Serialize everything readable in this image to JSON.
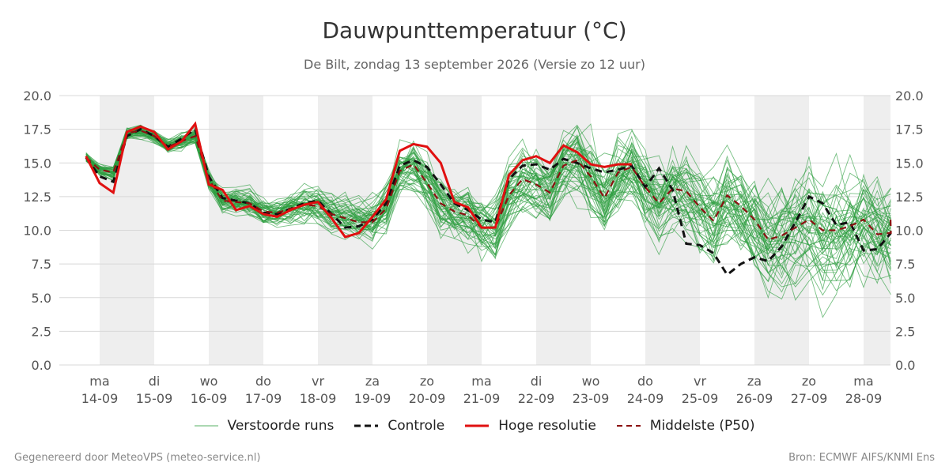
{
  "header": {
    "title": "Dauwpunttemperatuur (°C)",
    "subtitle": "De Bilt, zondag 13 september 2026 (Versie zo 12 uur)"
  },
  "footer": {
    "left": "Gegenereerd door MeteoVPS (meteo-service.nl)",
    "right": "Bron: ECMWF AIFS/KNMI Ens"
  },
  "legend": [
    {
      "key": "members",
      "label": "Verstoorde runs"
    },
    {
      "key": "control",
      "label": "Controle"
    },
    {
      "key": "hires",
      "label": "Hoge resolutie"
    },
    {
      "key": "median",
      "label": "Middelste (P50)"
    }
  ],
  "colors": {
    "members": "#2e9e41",
    "control": "#111111",
    "hires": "#e01010",
    "median": "#8b1010",
    "shade": "#eeeeee",
    "grid": "#d8d8d8"
  },
  "chart_data": {
    "type": "line",
    "x_unit": "days since ma 14-09 00:00",
    "xlim": [
      -0.25,
      14.5
    ],
    "ylim": [
      0,
      20
    ],
    "yticks": [
      "0.0",
      "2.5",
      "5.0",
      "7.5",
      "10.0",
      "12.5",
      "15.0",
      "17.5",
      "20.0"
    ],
    "xticks": [
      {
        "day": "ma",
        "date": "14-09"
      },
      {
        "day": "di",
        "date": "15-09"
      },
      {
        "day": "wo",
        "date": "16-09"
      },
      {
        "day": "do",
        "date": "17-09"
      },
      {
        "day": "vr",
        "date": "18-09"
      },
      {
        "day": "za",
        "date": "19-09"
      },
      {
        "day": "zo",
        "date": "20-09"
      },
      {
        "day": "ma",
        "date": "21-09"
      },
      {
        "day": "di",
        "date": "22-09"
      },
      {
        "day": "wo",
        "date": "23-09"
      },
      {
        "day": "do",
        "date": "24-09"
      },
      {
        "day": "vr",
        "date": "25-09"
      },
      {
        "day": "za",
        "date": "26-09"
      },
      {
        "day": "zo",
        "date": "27-09"
      },
      {
        "day": "ma",
        "date": "28-09"
      }
    ],
    "shaded_days": [
      0,
      2,
      4,
      6,
      8,
      10,
      12,
      14
    ],
    "hires": {
      "name": "Hoge resolutie",
      "x": [
        -0.25,
        0,
        0.25,
        0.5,
        0.75,
        1,
        1.25,
        1.5,
        1.75,
        2,
        2.25,
        2.5,
        2.75,
        3,
        3.25,
        3.5,
        3.75,
        4,
        4.25,
        4.5,
        4.75,
        5,
        5.25,
        5.5,
        5.75,
        6,
        6.25,
        6.5,
        6.75,
        7,
        7.25,
        7.5,
        7.75,
        8,
        8.25,
        8.5,
        8.75,
        9,
        9.25,
        9.5,
        9.75
      ],
      "y": [
        15.5,
        13.5,
        12.8,
        17.3,
        17.7,
        17.3,
        16.0,
        16.6,
        17.9,
        13.4,
        13.0,
        11.5,
        11.8,
        11.2,
        11.0,
        11.5,
        11.9,
        12.1,
        10.9,
        9.5,
        9.8,
        11.0,
        12.3,
        15.9,
        16.4,
        16.2,
        15.0,
        12.1,
        11.7,
        10.2,
        10.2,
        14.1,
        15.2,
        15.5,
        15.0,
        16.3,
        15.8,
        14.9,
        14.7,
        14.9,
        14.9
      ]
    },
    "control": {
      "name": "Controle",
      "x": [
        -0.25,
        0,
        0.25,
        0.5,
        0.75,
        1,
        1.25,
        1.5,
        1.75,
        2,
        2.25,
        2.5,
        2.75,
        3,
        3.25,
        3.5,
        3.75,
        4,
        4.25,
        4.5,
        4.75,
        5,
        5.25,
        5.5,
        5.75,
        6,
        6.25,
        6.5,
        6.75,
        7,
        7.25,
        7.5,
        7.75,
        8,
        8.25,
        8.5,
        8.75,
        9,
        9.25,
        9.5,
        9.75,
        10,
        10.25,
        10.5,
        10.75,
        11,
        11.25,
        11.5,
        11.75,
        12,
        12.25,
        12.5,
        12.75,
        13,
        13.25,
        13.5,
        13.75,
        14,
        14.25,
        14.5
      ],
      "y": [
        15.4,
        14.0,
        13.6,
        17.0,
        17.5,
        17.0,
        16.2,
        16.8,
        17.5,
        14.0,
        12.4,
        12.2,
        12.0,
        11.3,
        11.2,
        11.6,
        12.0,
        12.2,
        11.2,
        10.2,
        10.3,
        10.8,
        12.0,
        14.8,
        15.2,
        14.7,
        13.4,
        12.0,
        11.5,
        10.8,
        10.6,
        13.8,
        14.8,
        14.9,
        14.5,
        15.3,
        15.0,
        14.6,
        14.3,
        14.5,
        14.8,
        13.2,
        14.6,
        13.0,
        9.0,
        8.9,
        8.3,
        6.7,
        7.5,
        8.0,
        7.7,
        8.8,
        10.6,
        12.5,
        12.0,
        10.4,
        10.6,
        8.5,
        8.6,
        9.8
      ]
    },
    "median": {
      "name": "Middelste (P50)",
      "x": [
        -0.25,
        0,
        0.25,
        0.5,
        0.75,
        1,
        1.25,
        1.5,
        1.75,
        2,
        2.25,
        2.5,
        2.75,
        3,
        3.25,
        3.5,
        3.75,
        4,
        4.25,
        4.5,
        4.75,
        5,
        5.25,
        5.5,
        5.75,
        6,
        6.25,
        6.5,
        6.75,
        7,
        7.25,
        7.5,
        7.75,
        8,
        8.25,
        8.5,
        8.75,
        9,
        9.25,
        9.5,
        9.75,
        10,
        10.25,
        10.5,
        10.75,
        11,
        11.25,
        11.5,
        11.75,
        12,
        12.25,
        12.5,
        12.75,
        13,
        13.25,
        13.5,
        13.75,
        14,
        14.25,
        14.5
      ],
      "y": [
        15.4,
        14.5,
        14.3,
        17.2,
        17.4,
        17.0,
        16.2,
        16.6,
        17.0,
        13.8,
        12.2,
        12.1,
        12.0,
        11.4,
        11.3,
        11.6,
        11.9,
        11.8,
        11.2,
        10.9,
        10.6,
        10.6,
        11.6,
        14.4,
        14.9,
        13.5,
        12.0,
        11.4,
        11.1,
        10.2,
        10.2,
        12.6,
        13.8,
        13.4,
        12.8,
        14.8,
        15.2,
        14.0,
        12.4,
        14.3,
        14.7,
        13.2,
        12.0,
        13.1,
        12.9,
        11.7,
        10.7,
        12.6,
        11.8,
        10.8,
        9.3,
        9.6,
        10.2,
        10.8,
        10.0,
        10.0,
        10.3,
        10.8,
        9.7,
        9.8
      ],
      "y_tail": 11.0
    },
    "members": {
      "name": "Verstoorde runs",
      "count": 50,
      "x_step": 0.25
    }
  }
}
